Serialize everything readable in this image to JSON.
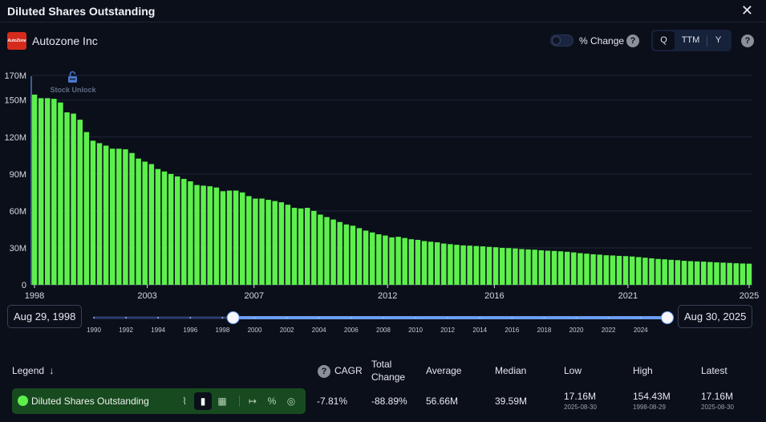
{
  "window": {
    "title": "Diluted Shares Outstanding",
    "close_label": "✕"
  },
  "company": {
    "name": "Autozone Inc",
    "logo_text": "AutoZone"
  },
  "controls": {
    "pct_change_label": "% Change",
    "help_glyph": "?",
    "period_options": [
      "Q",
      "TTM",
      "Y"
    ],
    "period_selected": "Q"
  },
  "annotation": {
    "label": "Stock Unlock",
    "icon": "lock-icon"
  },
  "range": {
    "start_label": "Aug 29, 1998",
    "end_label": "Aug 30, 2025",
    "slider_years": [
      "1990",
      "1992",
      "1994",
      "1996",
      "1998",
      "2000",
      "2002",
      "2004",
      "2006",
      "2008",
      "2010",
      "2012",
      "2014",
      "2016",
      "2018",
      "2020",
      "2022",
      "2024"
    ],
    "slider_start_year": 1998.66,
    "slider_end_year": 2025.66
  },
  "legend": {
    "header": "Legend",
    "sort_glyph": "↓",
    "series_name": "Diluted Shares Outstanding",
    "series_color": "#5df04c",
    "icons": [
      "line-chart-icon",
      "bar-chart-icon",
      "stacked-bar-icon",
      "extend-icon",
      "percent-off-icon",
      "hide-icon"
    ],
    "icon_glyphs": [
      "⌇",
      "▮",
      "▦",
      "↦",
      "%",
      "◎"
    ]
  },
  "stats": {
    "headers": {
      "cagr": "CAGR",
      "total_change_1": "Total",
      "total_change_2": "Change",
      "average": "Average",
      "median": "Median",
      "low": "Low",
      "high": "High",
      "latest": "Latest"
    },
    "values": {
      "cagr": "-7.81%",
      "total_change": "-88.89%",
      "average": "56.66M",
      "median": "39.59M",
      "low": "17.16M",
      "low_date": "2025-08-30",
      "high": "154.43M",
      "high_date": "1998-08-29",
      "latest": "17.16M",
      "latest_date": "2025-08-30"
    }
  },
  "chart_data": {
    "type": "bar",
    "title": "Diluted Shares Outstanding",
    "series": [
      {
        "name": "Diluted Shares Outstanding",
        "color": "#5df04c"
      }
    ],
    "x_start": "Aug 29, 1998",
    "x_end": "Aug 30, 2025",
    "x_tick_labels": [
      "1998",
      "2003",
      "2007",
      "2012",
      "2016",
      "2021",
      "2025"
    ],
    "y_tick_labels": [
      "0",
      "30M",
      "60M",
      "90M",
      "120M",
      "150M",
      "170M"
    ],
    "ylim": [
      0,
      170000000
    ],
    "grid": true,
    "values": [
      154.43,
      151.5,
      151.5,
      151.0,
      148.0,
      140.0,
      139.0,
      134.0,
      124.0,
      117.0,
      115.0,
      113.0,
      110.5,
      110.5,
      110.0,
      107.0,
      102.5,
      100.0,
      98.0,
      94.0,
      92.0,
      90.0,
      88.0,
      86.0,
      84.0,
      81.0,
      80.5,
      80.0,
      79.0,
      76.0,
      76.5,
      76.5,
      75.0,
      72.0,
      70.0,
      70.0,
      69.0,
      68.0,
      67.0,
      65.0,
      62.5,
      62.0,
      62.5,
      60.0,
      57.0,
      55.0,
      53.0,
      51.0,
      49.0,
      48.0,
      46.0,
      44.0,
      42.5,
      41.0,
      40.0,
      38.5,
      39.0,
      38.0,
      37.0,
      36.5,
      35.5,
      35.0,
      34.5,
      33.5,
      33.0,
      32.5,
      32.0,
      31.8,
      31.5,
      31.2,
      30.8,
      30.5,
      30.0,
      29.8,
      29.5,
      29.0,
      28.7,
      28.5,
      28.0,
      27.7,
      27.5,
      27.2,
      26.8,
      26.3,
      25.7,
      25.3,
      24.8,
      24.5,
      24.0,
      23.8,
      23.5,
      23.3,
      23.0,
      22.5,
      22.0,
      21.5,
      21.0,
      20.7,
      20.3,
      20.0,
      19.5,
      19.2,
      19.0,
      18.8,
      18.5,
      18.2,
      18.0,
      17.8,
      17.5,
      17.3,
      17.16
    ]
  }
}
